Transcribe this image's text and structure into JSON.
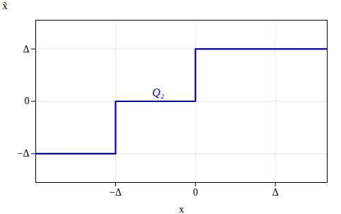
{
  "chart_data": {
    "type": "line",
    "x": [
      -2.0,
      -1.0,
      -1.0,
      0.0,
      0.0,
      1.0,
      1.0,
      1.65
    ],
    "values": [
      -1.0,
      -1.0,
      0.0,
      0.0,
      1.0,
      1.0,
      1.0,
      1.0
    ],
    "color": "#0000CC",
    "xlabel": "x",
    "ylabel": "x̃",
    "annotations": [
      "Q₂"
    ],
    "xlim": [
      -2.0,
      1.65
    ],
    "ylim": [
      -1.55,
      1.55
    ],
    "xticks": [
      {
        "value": -1,
        "label": "−Δ"
      },
      0,
      {
        "value": 1,
        "label": "Δ"
      }
    ],
    "yticks": [
      {
        "value": 1,
        "label": "Δ"
      },
      0,
      {
        "value": -1,
        "label": "−Δ"
      }
    ],
    "grid": true
  }
}
